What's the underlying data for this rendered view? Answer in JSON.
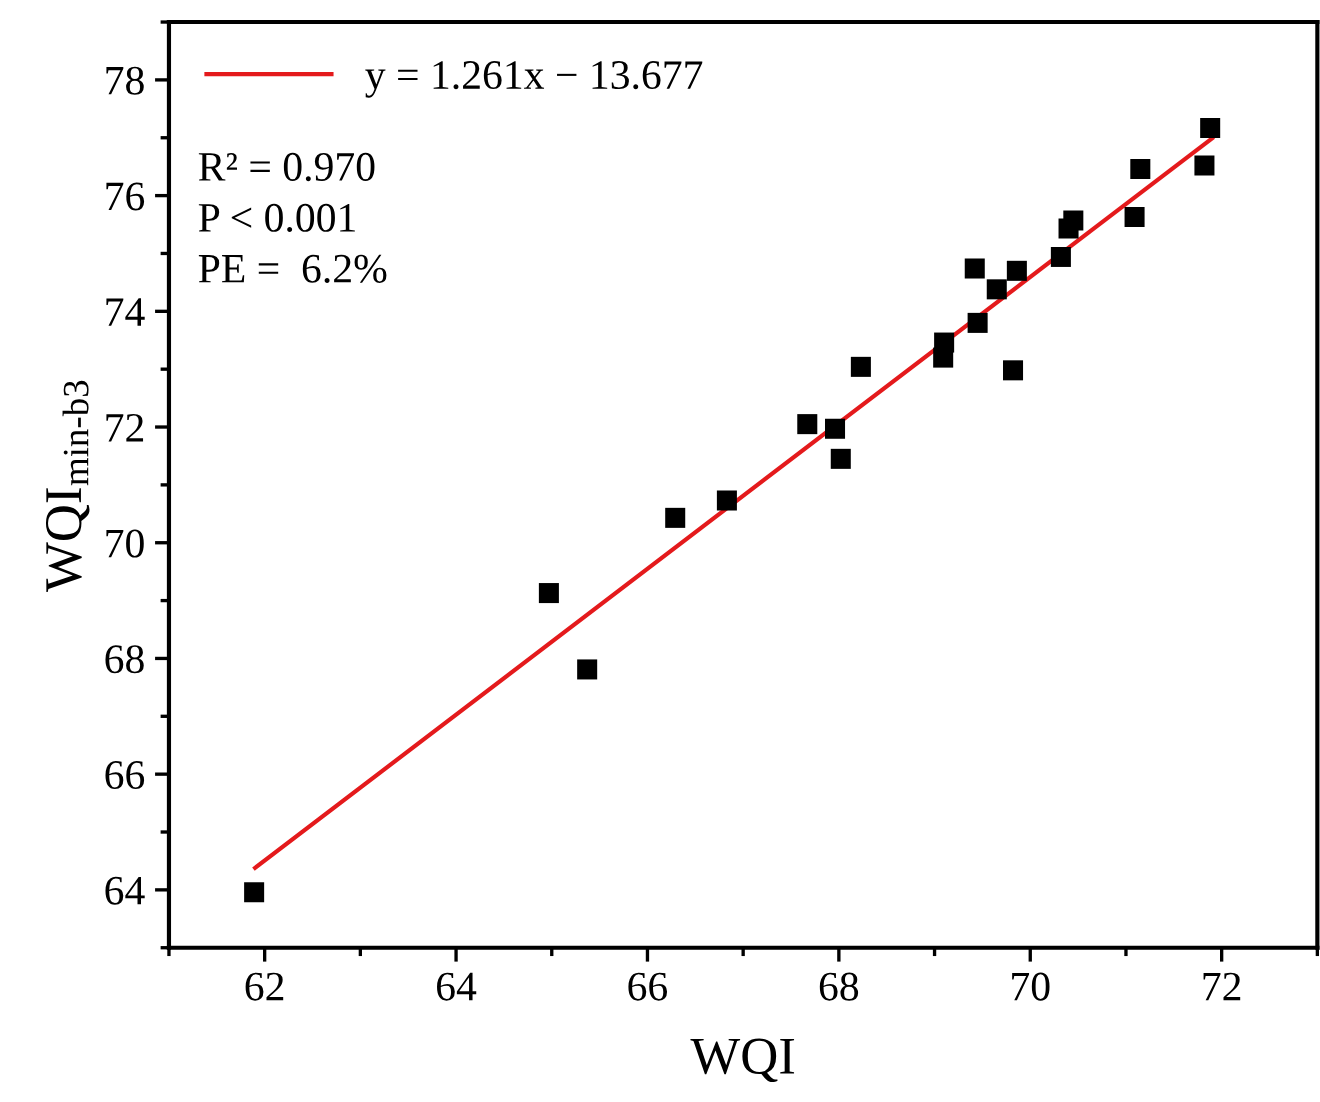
{
  "chart_data": {
    "type": "scatter",
    "xlabel": "WQI",
    "ylabel": "WQI$_{min-b3}$",
    "xlim": [
      61,
      73
    ],
    "xticks": [
      62,
      64,
      66,
      68,
      70,
      72
    ],
    "ylim": [
      63,
      79
    ],
    "yticks": [
      64,
      66,
      68,
      70,
      72,
      74,
      76,
      78
    ],
    "grid": false,
    "legend": "top left",
    "series": [
      {
        "color": "#000000",
        "marker": "square",
        "x": [
          61.89,
          64.97,
          65.37,
          66.29,
          66.83,
          67.67,
          67.96,
          68.02,
          68.23,
          69.09,
          69.1,
          69.42,
          69.45,
          69.65,
          69.82,
          69.86,
          70.32,
          70.4,
          70.45,
          71.09,
          71.15,
          71.82,
          71.88
        ],
        "values": [
          63.96,
          69.13,
          67.81,
          70.43,
          70.73,
          72.05,
          71.97,
          71.45,
          73.04,
          73.2,
          73.46,
          74.74,
          73.8,
          74.38,
          72.98,
          74.7,
          74.94,
          75.43,
          75.57,
          75.63,
          76.46,
          76.52,
          77.17
        ]
      },
      {
        "type": "line",
        "name": "y = 1.261x − 13.677",
        "color": "#e41a1c",
        "marker": "none",
        "line_style": "solid",
        "x": [
          61.9,
          71.9
        ],
        "values": [
          64.38,
          76.99
        ]
      }
    ],
    "annotations": [
      "R² = 0.970",
      "P < 0.001",
      "PE =  6.2%"
    ]
  }
}
